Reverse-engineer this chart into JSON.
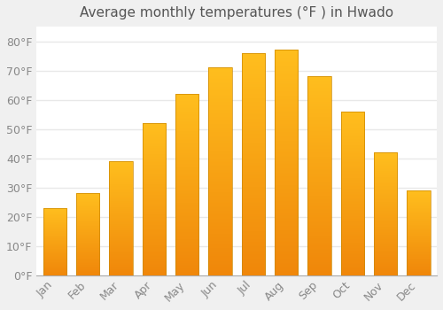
{
  "title": "Average monthly temperatures (°F ) in Hwado",
  "months": [
    "Jan",
    "Feb",
    "Mar",
    "Apr",
    "May",
    "Jun",
    "Jul",
    "Aug",
    "Sep",
    "Oct",
    "Nov",
    "Dec"
  ],
  "values": [
    23,
    28,
    39,
    52,
    62,
    71,
    76,
    77,
    68,
    56,
    42,
    29
  ],
  "bar_color_top": "#FFBE1E",
  "bar_color_bottom": "#F0870A",
  "bar_edge_color": "#B8860B",
  "ylim": [
    0,
    85
  ],
  "yticks": [
    0,
    10,
    20,
    30,
    40,
    50,
    60,
    70,
    80
  ],
  "background_color": "#F0F0F0",
  "plot_bg_color": "#FFFFFF",
  "grid_color": "#E8E8E8",
  "title_fontsize": 11,
  "tick_fontsize": 9,
  "title_color": "#555555",
  "tick_color": "#888888"
}
